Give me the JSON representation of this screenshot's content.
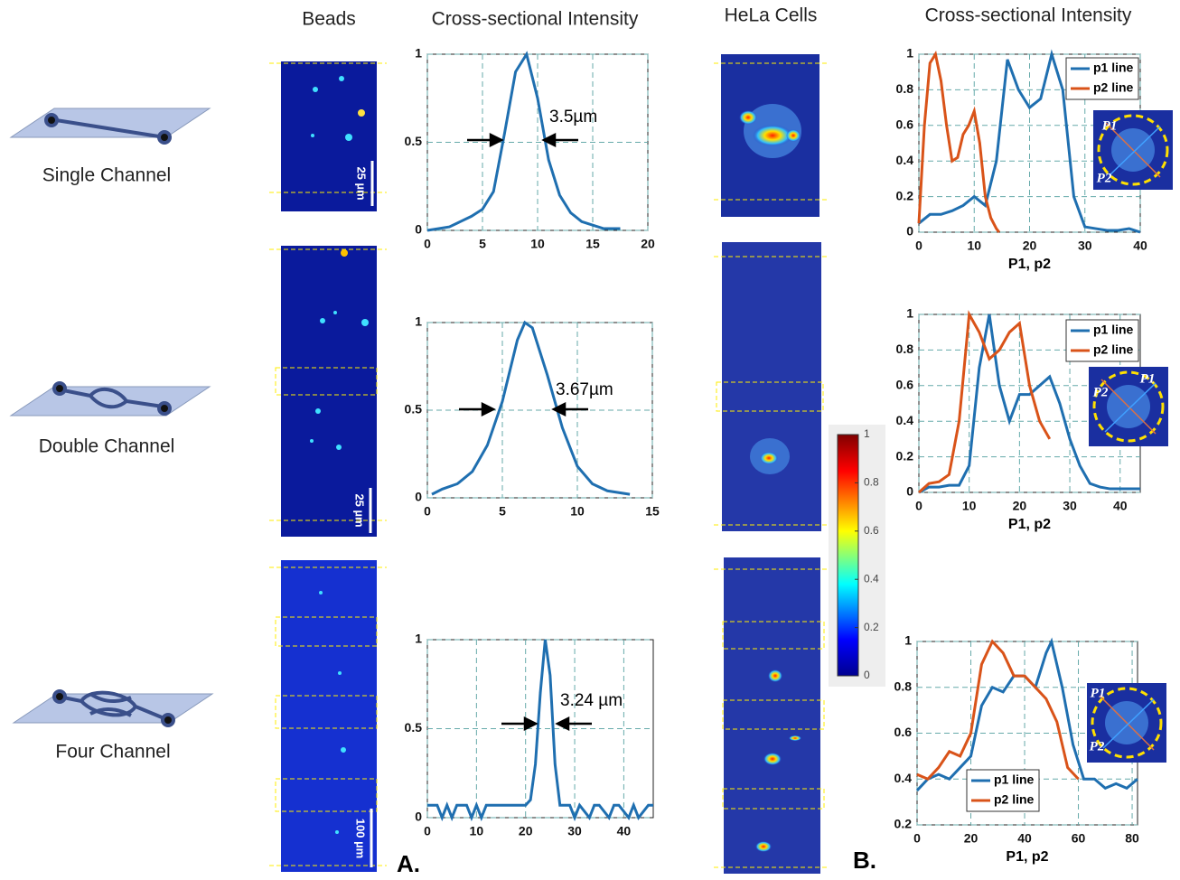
{
  "figure": {
    "headers": [
      "Beads",
      "Cross-sectional Intensity",
      "HeLa Cells",
      "Cross-sectional Intensity"
    ],
    "channels": [
      "Single Channel",
      "Double Channel",
      "Four Channel"
    ],
    "scale_bars": [
      "25 µm",
      "25 µm",
      "100 µm"
    ],
    "panels": [
      "A.",
      "B."
    ]
  },
  "chart_data": [
    {
      "type": "line",
      "color": "#1f6fb0",
      "annotation": "3.5µm",
      "grid": true,
      "x": [
        0,
        2,
        4,
        5,
        6,
        7,
        8,
        9,
        10,
        11,
        12,
        13,
        14,
        15,
        16,
        17.5
      ],
      "values": [
        0,
        0.02,
        0.08,
        0.12,
        0.22,
        0.55,
        0.9,
        1,
        0.75,
        0.4,
        0.2,
        0.1,
        0.05,
        0.03,
        0.01,
        0.01
      ],
      "xlim": [
        0,
        20
      ],
      "xticks": [
        0,
        5,
        10,
        15,
        20
      ],
      "ylim": [
        0,
        1
      ],
      "yticks": [
        0,
        0.5,
        1
      ]
    },
    {
      "type": "line",
      "color": "#1f6fb0",
      "annotation": "3.67µm",
      "grid": true,
      "x": [
        0.3,
        1,
        2,
        3,
        4,
        5,
        6,
        6.5,
        7,
        8,
        9,
        10,
        11,
        12,
        13.5
      ],
      "values": [
        0.02,
        0.05,
        0.08,
        0.15,
        0.3,
        0.55,
        0.9,
        1,
        0.97,
        0.7,
        0.4,
        0.18,
        0.08,
        0.04,
        0.02
      ],
      "xlim": [
        0,
        15
      ],
      "xticks": [
        0,
        5,
        10,
        15
      ],
      "ylim": [
        0,
        1
      ],
      "yticks": [
        0,
        0.5,
        1
      ]
    },
    {
      "type": "line",
      "color": "#1f6fb0",
      "annotation": "3.24 µm",
      "grid": true,
      "x": [
        0,
        2,
        3,
        4,
        5,
        6,
        8,
        9,
        10,
        11,
        12,
        14,
        16,
        18,
        20,
        21,
        22,
        23,
        24,
        25,
        26,
        27,
        29,
        30,
        31,
        33,
        34,
        35,
        37,
        38,
        39,
        41,
        42,
        43,
        45,
        46
      ],
      "values": [
        0.07,
        0.07,
        0,
        0.07,
        0,
        0.07,
        0.07,
        0,
        0.07,
        0,
        0.07,
        0.07,
        0.07,
        0.07,
        0.07,
        0.1,
        0.3,
        0.7,
        1,
        0.8,
        0.3,
        0.07,
        0.07,
        0,
        0.07,
        0,
        0.07,
        0.07,
        0,
        0.07,
        0.07,
        0,
        0.07,
        0,
        0.07,
        0.07
      ],
      "xlim": [
        0,
        46
      ],
      "xticks": [
        0,
        10,
        20,
        30,
        40
      ],
      "ylim": [
        0,
        1
      ],
      "yticks": [
        0,
        0.5,
        1
      ]
    },
    {
      "type": "line",
      "xlabel": "P1, p2",
      "grid": true,
      "legend": "upper right",
      "inset_labels": [
        "P1",
        "P2"
      ],
      "series": [
        {
          "name": "p1 line",
          "color": "#1f6fb0",
          "x": [
            0,
            2,
            4,
            6,
            8,
            10,
            12,
            14,
            16,
            18,
            20,
            22,
            24,
            26,
            28,
            30,
            32,
            34,
            36,
            38,
            40
          ],
          "values": [
            0.05,
            0.1,
            0.1,
            0.12,
            0.15,
            0.2,
            0.15,
            0.4,
            0.97,
            0.8,
            0.7,
            0.75,
            1,
            0.8,
            0.2,
            0.03,
            0.02,
            0.01,
            0.01,
            0.02,
            0
          ]
        },
        {
          "name": "p2 line",
          "color": "#d95319",
          "x": [
            0,
            1,
            2,
            3,
            4,
            5,
            6,
            7,
            8,
            9,
            10,
            11,
            12,
            13,
            14,
            14.5
          ],
          "values": [
            0.05,
            0.6,
            0.95,
            1,
            0.85,
            0.6,
            0.4,
            0.42,
            0.55,
            0.6,
            0.68,
            0.5,
            0.2,
            0.08,
            0.02,
            0
          ]
        }
      ],
      "xlim": [
        0,
        40
      ],
      "xticks": [
        0,
        10,
        20,
        30,
        40
      ],
      "ylim": [
        0,
        1
      ],
      "yticks": [
        0,
        0.2,
        0.4,
        0.6,
        0.8,
        1
      ]
    },
    {
      "type": "line",
      "xlabel": "P1, p2",
      "grid": true,
      "legend": "upper right",
      "inset_labels": [
        "P1",
        "P2"
      ],
      "series": [
        {
          "name": "p1 line",
          "color": "#1f6fb0",
          "x": [
            0,
            2,
            4,
            6,
            8,
            10,
            12,
            14,
            16,
            18,
            20,
            22,
            24,
            26,
            28,
            30,
            32,
            34,
            36,
            38,
            40,
            42,
            44
          ],
          "values": [
            0,
            0.03,
            0.03,
            0.04,
            0.04,
            0.15,
            0.7,
            1,
            0.6,
            0.4,
            0.55,
            0.55,
            0.6,
            0.65,
            0.5,
            0.3,
            0.15,
            0.05,
            0.03,
            0.02,
            0.02,
            0.02,
            0.02
          ]
        },
        {
          "name": "p2 line",
          "color": "#d95319",
          "x": [
            0,
            2,
            4,
            6,
            8,
            10,
            12,
            14,
            16,
            18,
            20,
            22,
            24,
            26
          ],
          "values": [
            0,
            0.05,
            0.06,
            0.1,
            0.4,
            1,
            0.9,
            0.75,
            0.8,
            0.9,
            0.95,
            0.6,
            0.4,
            0.3
          ]
        }
      ],
      "xlim": [
        0,
        44
      ],
      "xticks": [
        0,
        10,
        20,
        30,
        40
      ],
      "ylim": [
        0,
        1
      ],
      "yticks": [
        0,
        0.2,
        0.4,
        0.6,
        0.8,
        1
      ]
    },
    {
      "type": "line",
      "xlabel": "P1, p2",
      "grid": true,
      "legend": "lower left",
      "inset_labels": [
        "P1",
        "P2"
      ],
      "series": [
        {
          "name": "p1 line",
          "color": "#1f6fb0",
          "x": [
            0,
            4,
            8,
            12,
            16,
            20,
            24,
            28,
            32,
            36,
            40,
            44,
            48,
            50,
            54,
            58,
            62,
            66,
            70,
            74,
            78,
            82
          ],
          "values": [
            0.35,
            0.4,
            0.42,
            0.4,
            0.45,
            0.5,
            0.72,
            0.8,
            0.78,
            0.85,
            0.85,
            0.8,
            0.95,
            1,
            0.8,
            0.55,
            0.4,
            0.4,
            0.36,
            0.38,
            0.36,
            0.4
          ]
        },
        {
          "name": "p2 line",
          "color": "#d95319",
          "x": [
            0,
            4,
            8,
            12,
            16,
            20,
            24,
            28,
            32,
            36,
            40,
            44,
            48,
            52,
            56,
            60
          ],
          "values": [
            0.42,
            0.4,
            0.45,
            0.52,
            0.5,
            0.6,
            0.9,
            1,
            0.95,
            0.85,
            0.85,
            0.8,
            0.75,
            0.65,
            0.45,
            0.4
          ]
        }
      ],
      "xlim": [
        0,
        82
      ],
      "xticks": [
        0,
        20,
        40,
        60,
        80
      ],
      "ylim": [
        0.2,
        1
      ],
      "yticks": [
        0.2,
        0.4,
        0.6,
        0.8,
        1
      ]
    },
    {
      "type": "colorbar",
      "ylim": [
        0,
        1
      ],
      "yticks": [
        0,
        0.2,
        0.4,
        0.6,
        0.8,
        1
      ]
    }
  ]
}
